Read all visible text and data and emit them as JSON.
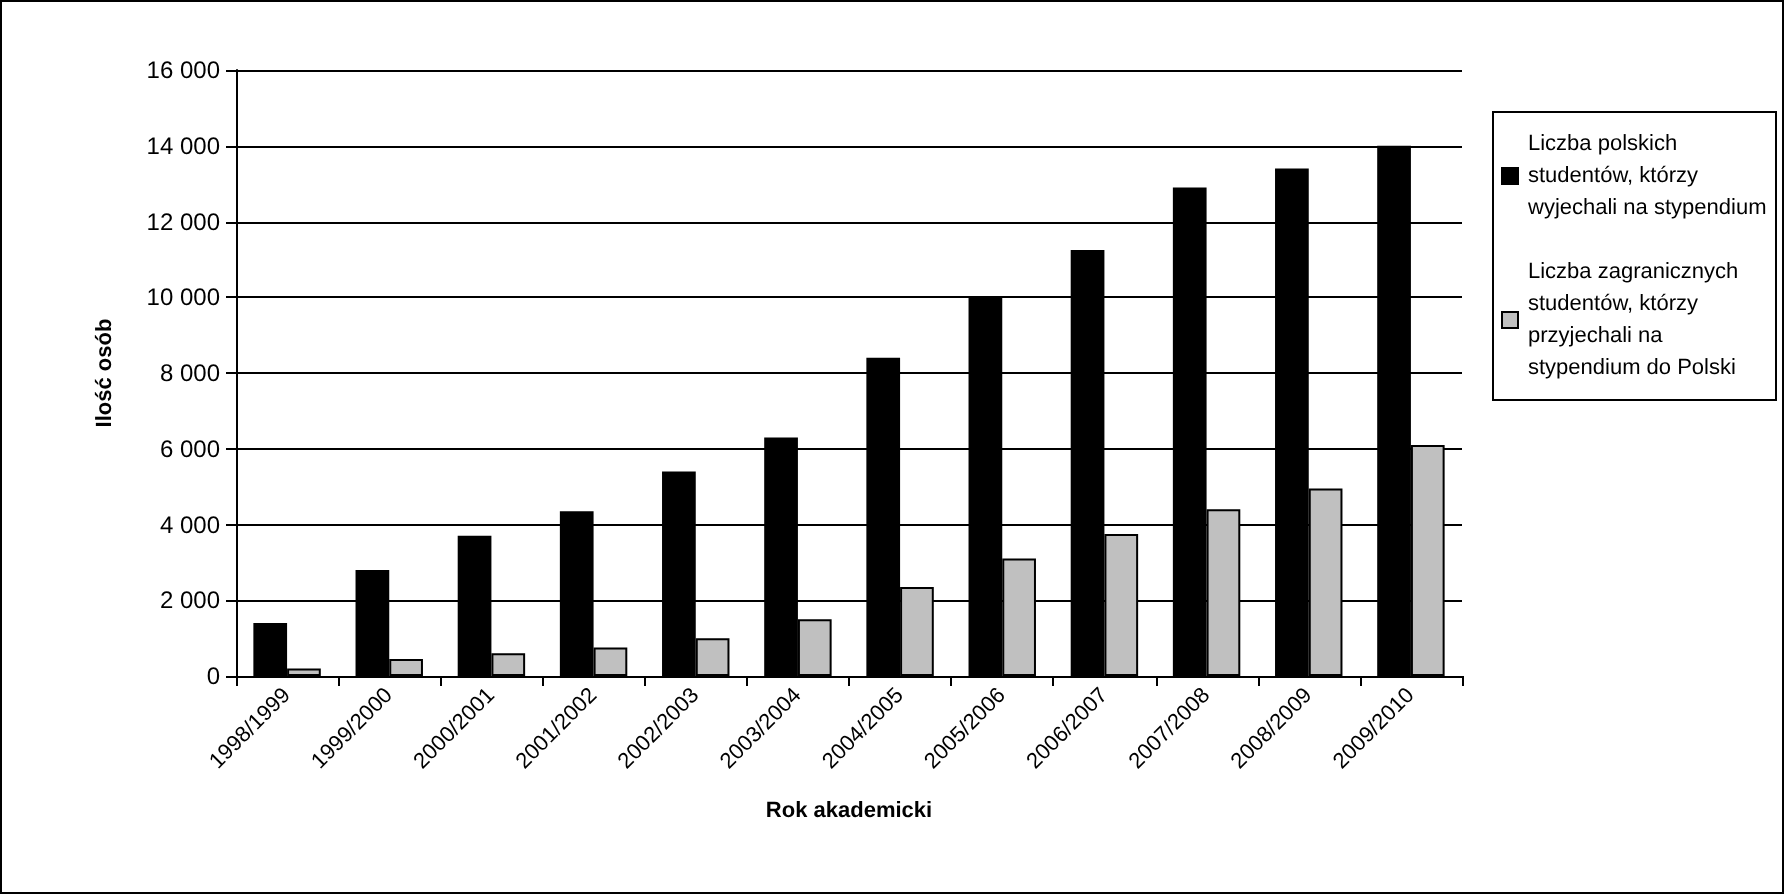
{
  "chart_data": {
    "type": "bar",
    "xlabel": "Rok akademicki",
    "ylabel": "Ilość osób",
    "categories": [
      "1998/1999",
      "1999/2000",
      "2000/2001",
      "2001/2002",
      "2002/2003",
      "2003/2004",
      "2004/2005",
      "2005/2006",
      "2006/2007",
      "2007/2008",
      "2008/2009",
      "2009/2010"
    ],
    "series": [
      {
        "name": "Liczba polskich studentów, którzy wyjechali na stypendium",
        "color": "#000000",
        "values": [
          1400,
          2800,
          3700,
          4350,
          5400,
          6300,
          8400,
          10000,
          11250,
          12900,
          13400,
          14000
        ]
      },
      {
        "name": "Liczba zagranicznych studentów, którzy przyjechali na stypendium do Polski",
        "color": "#c0c0c0",
        "values": [
          200,
          450,
          600,
          750,
          1000,
          1500,
          2350,
          3100,
          3750,
          4400,
          4950,
          6100
        ]
      }
    ],
    "ylim": [
      0,
      16000
    ],
    "yticks": [
      0,
      2000,
      4000,
      6000,
      8000,
      10000,
      12000,
      14000,
      16000
    ],
    "grid": "y",
    "legend": "right"
  }
}
